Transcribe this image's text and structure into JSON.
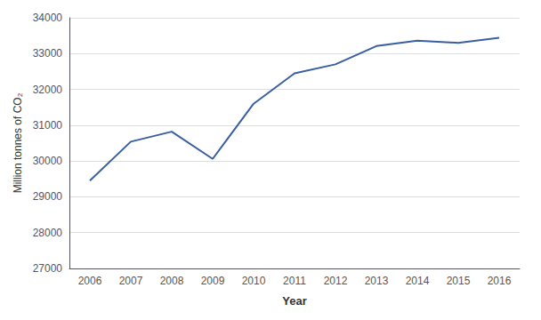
{
  "chart_data": {
    "type": "line",
    "x": [
      2006,
      2007,
      2008,
      2009,
      2010,
      2011,
      2012,
      2013,
      2014,
      2015,
      2016
    ],
    "values": [
      29450,
      30540,
      30820,
      30060,
      31600,
      32450,
      32700,
      33210,
      33360,
      33300,
      33440
    ],
    "color": "#3a5fa0",
    "xlabel": "Year",
    "ylabel": "Million tonnes of CO₂",
    "xlim": [
      2005.5,
      2016.5
    ],
    "xticks": [
      2006,
      2007,
      2008,
      2009,
      2010,
      2011,
      2012,
      2013,
      2014,
      2015,
      2016
    ],
    "ylim": [
      27000,
      34000
    ],
    "yticks": [
      27000,
      28000,
      29000,
      30000,
      31000,
      32000,
      33000,
      34000
    ],
    "grid": true
  }
}
